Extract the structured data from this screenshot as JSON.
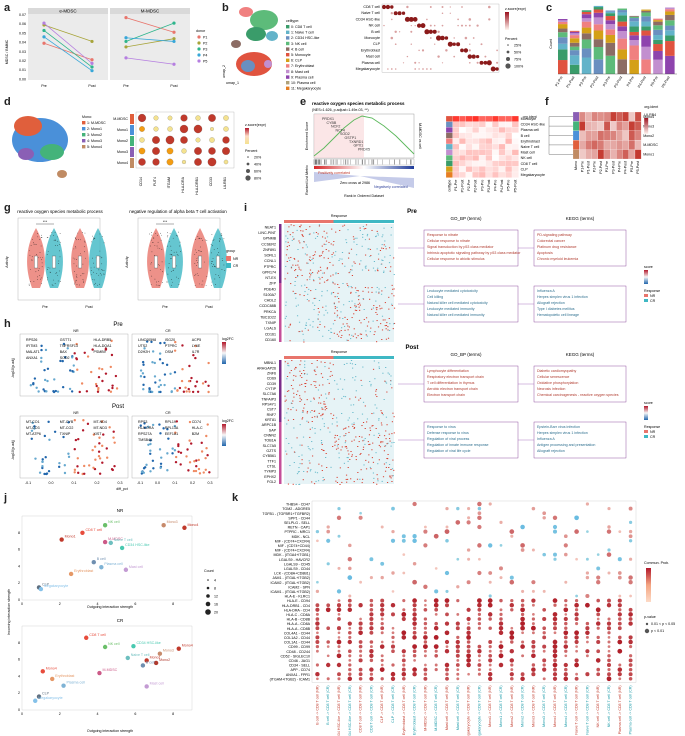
{
  "panels": {
    "a": {
      "label": "a",
      "titles": [
        "e-MDSC",
        "M-MDSC"
      ],
      "ylabel": "MDSC / BMMC",
      "yticks": [
        "0.07",
        "0.06",
        "0.05",
        "0.04",
        "0.03",
        "0.02",
        "0.01",
        "0.00"
      ],
      "xticks": [
        "Pre",
        "Post"
      ],
      "legend_title": "donor",
      "donors": [
        "P1",
        "P2",
        "P3",
        "P4",
        "P5"
      ],
      "colors": [
        "#e8756c",
        "#a7a43a",
        "#2eb58c",
        "#38a7d8",
        "#b57ee0"
      ]
    },
    "b": {
      "label": "b",
      "legend_title": "celltype:",
      "celltypes": [
        "0: CD8 T cell",
        "1: Naive T cell",
        "2: CD34 HSC-like",
        "3: NK cell",
        "4: B cell",
        "5: Monocyte",
        "6: CLP",
        "7: Erythroblast",
        "8: Mast cell",
        "9: Plasma cell",
        "10: Plasma cell",
        "11: Megakaryocyte"
      ],
      "dot_rows": [
        "CD8 T cell",
        "Naive T cell",
        "CD34 HSC-like",
        "NK cell",
        "B cell",
        "Monocyte",
        "CLP",
        "Erythroblast",
        "Mast cell",
        "Plasma cell",
        "Megakaryocyte"
      ],
      "axis1": "umap_1",
      "axis2": "umap_2",
      "cb_title": "z.score(expr)",
      "size_title": "Percent",
      "size_vals": [
        "25%",
        "50%",
        "75%",
        "100%"
      ]
    },
    "c": {
      "label": "c",
      "ylabel": "Count",
      "xticks": [
        "P1-Pre",
        "P1-Post",
        "P2-Pre",
        "P2-Post",
        "P3-Pre",
        "P3-Post",
        "P4-Pre",
        "P4-Post",
        "P5-Pre",
        "P5-Post"
      ]
    },
    "d": {
      "label": "d",
      "legend_title": "Mono:",
      "groups": [
        "1: M-MDSC",
        "2: Mono1",
        "3: Mono2",
        "4: Mono3",
        "5: Mono4"
      ],
      "dot_rows": [
        "M-MDSC",
        "Mono1",
        "Mono2",
        "Mono3",
        "Mono4"
      ],
      "genes": [
        "CD14",
        "FUT4",
        "ITGAM",
        "HLA-DRA",
        "HLA-DRB1",
        "CD33",
        "LILRB1"
      ],
      "cb_title": "z.score(expr)",
      "size_title": "Percent",
      "size_vals": [
        "20%",
        "40%",
        "60%",
        "80%"
      ]
    },
    "e": {
      "label": "e",
      "title": "reactive oxygen species metabolic process",
      "stats": "(NES=1.626, p.adjust=1.49e-03, **)",
      "ylabel": "Enrichment Score",
      "ylabel2": "Ranked List Metric",
      "xlabel": "Rank in Ordered Dataset",
      "pos": "Positively correlated",
      "neg": "Negatively correlated",
      "zero": "Zero cross at 2986",
      "side": "M-MDSC vs cell",
      "genes": [
        "PRDX1",
        "CYBB",
        "NCF2",
        "NCF4",
        "SOD2",
        "GSTP1",
        "TXNRD1",
        "GPX1",
        "PRDX5"
      ],
      "rows": [
        "Monocyte",
        "CD34 HSC-like",
        "Plasma cell",
        "B cell",
        "Erythroblast",
        "Naive T cell",
        "Mast cell",
        "NK cell",
        "CD8 T cell",
        "CLP",
        "Megakaryocyte"
      ],
      "cols": [
        "celltype",
        "P1-Pre",
        "P1-Post",
        "P2-Pre",
        "P2-Post",
        "P3-Pre",
        "P3-Post",
        "P4-Pre",
        "P4-Post",
        "P5-Pre",
        "P5-Post"
      ],
      "legend": "org.ident",
      "cb": "LILRB4"
    },
    "f": {
      "label": "f",
      "rows": [
        "Mono4",
        "Mono3",
        "Mono2",
        "M-MDSC",
        "Mono1"
      ],
      "cols": [
        "Mono",
        "P1-Pre",
        "P1-Post",
        "P2-Pre",
        "P2-Post",
        "P3-Pre",
        "P3-Post",
        "P4-Pre",
        "P4-Post",
        "P5-Pre",
        "P5-Post"
      ],
      "legend": "org.ident",
      "cb": "LILRB4"
    },
    "g": {
      "label": "g",
      "titles": [
        "reactive oxygen species metabolic process",
        "negative regulation of alpha beta T cell activation"
      ],
      "ylabel": "Activity",
      "xticks": [
        "Pre",
        "Post"
      ],
      "sig": "***",
      "legend_title": "group",
      "groups": [
        "NR",
        "CR"
      ]
    },
    "h": {
      "label": "h",
      "row_titles": [
        "Pre",
        "Post"
      ],
      "col_titles": [
        "NR",
        "CR"
      ],
      "ylabel": "-log10(p.adj)",
      "xlabel": "diff_pct",
      "xticks": [
        "-0.1",
        "0.0",
        "0.1",
        "0.2",
        "0.3"
      ],
      "cb_title": "log2FC",
      "pre_nr": [
        "RPS26",
        "GSTT1",
        "HLA-DRB5",
        "IFITM3",
        "TNFRSF13",
        "HLA-DQA1",
        "MALAT1",
        "BAX",
        "PSMB9",
        "ANXA1",
        "SOD2"
      ],
      "pre_cr": [
        "LINC00598",
        "ISG20",
        "ACP5",
        "UTS2",
        "PTPRC",
        "LY6E",
        "D2H2H",
        "OSM",
        "IL7R"
      ],
      "post_nr": [
        "MT-CO1",
        "MT-CYB",
        "MT-ND4",
        "MT-CO3",
        "MT-CO2",
        "MT-ND3",
        "MT-ATP6",
        "TXNIP",
        "XIST"
      ],
      "post_cr": [
        "RPS3",
        "RPL19",
        "CD74",
        "HLA-DRA",
        "RPL13A",
        "HLA-C",
        "RPS27A",
        "EEF1A1",
        "B2M",
        "TMSB4X"
      ]
    },
    "i": {
      "label": "i",
      "col_title": "Response",
      "states": [
        "Pre",
        "Post"
      ],
      "gobp": "GO_BP (terms)",
      "kegg": "KEGG (terms)",
      "pre_genes": [
        "NEAT1",
        "LINC-PINT",
        "GPNMB",
        "CCSER2",
        "ZNF891",
        "SORL1",
        "CCNL1",
        "PTPRC",
        "GPR174",
        "NT-EX",
        "ZFP",
        "PDE4D",
        "S100A7",
        "CHDL2",
        "CCDC88B",
        "PRKCA",
        "TBC1D22",
        "TXNIP",
        "LGALS",
        "CD161",
        "CD160"
      ],
      "post_genes": [
        "MBNL1",
        "ARHGAP26",
        "ZNF6",
        "CD69",
        "CD39",
        "CYTIP",
        "SLC7A6",
        "TNFAIP3",
        "RPS4Y1",
        "CST7",
        "RNF7",
        "KRT81",
        "ARPC1B",
        "SAP",
        "CNNN2",
        "TOB1A",
        "SLC7A5",
        "GZTS",
        "CYB561",
        "TTF1",
        "CTSL",
        "TYMP3",
        "EPHX2",
        "FGL2"
      ],
      "go_pre": [
        [
          "Response to nitrate",
          "Cellular response to nitrate",
          "Signal transduction by p53 class mediator",
          "Intrinsic apoptotic signaling pathway by p53 class mediator",
          "Cellular response to abiotic stimulus"
        ],
        [
          "Leukocyte mediated cytotoxicity",
          "Cell killing",
          "Natural killer cell mediated cytotoxicity",
          "Leukocyte mediated immunity",
          "Natural killer cell mediated immunity"
        ]
      ],
      "kegg_pre": [
        [
          "PD-signaling pathway",
          "Colorectal cancer",
          "Platinum drug resistance",
          "Apoptosis",
          "Chronic myeloid leukemia"
        ],
        [
          "Influenza A",
          "Herpes simplex virus 1 infection",
          "Allograft rejection",
          "Type I diabetes mellitus",
          "Hematopoietic cell lineage"
        ]
      ],
      "go_post": [
        [
          "Lymphocyte differentiation",
          "Respiratory electron transport chain",
          "T cell differentiation in thymus",
          "Aerobic electron transport chain",
          "Electron transport chain"
        ],
        [
          "Response to virus",
          "Defense response to virus",
          "Regulation of viral process",
          "Regulation of innate immune response",
          "Regulation of viral life cycle"
        ]
      ],
      "kegg_post": [
        [
          "Diabetic cardiomyopathy",
          "Cellular senescence",
          "Oxidative phosphorylation",
          "Necrosis infection",
          "Chemical carcinogenesis - reactive oxygen species"
        ],
        [
          "Epstein-Barr virus infection",
          "Herpes simplex virus 1 infection",
          "Influenza A",
          "Antigen processing and presentation",
          "Allograft rejection"
        ]
      ],
      "score": "score",
      "resp": "Response",
      "resp_vals": [
        "NR",
        "CR"
      ]
    },
    "j": {
      "label": "j",
      "titles": [
        "NR",
        "CR"
      ],
      "ylabel": "Incoming interaction strength",
      "xlabel": "Outgoing interaction strength",
      "count_title": "Count",
      "counts": [
        "4",
        "8",
        "12",
        "16",
        "20"
      ],
      "nr": [
        {
          "n": "Mono4",
          "x": 8.6,
          "y": 8.6,
          "c": "#c0392b"
        },
        {
          "n": "Mono3",
          "x": 7.5,
          "y": 8.9,
          "c": "#c78a6b"
        },
        {
          "n": "NK cell",
          "x": 4.4,
          "y": 8.9,
          "c": "#6abf69"
        },
        {
          "n": "CD8 T cell",
          "x": 3.2,
          "y": 8.0,
          "c": "#e74c3c"
        },
        {
          "n": "M-MDSC",
          "x": 4.4,
          "y": 6.9,
          "c": "#cc5a88"
        },
        {
          "n": "Mono1",
          "x": 2.1,
          "y": 7.2,
          "c": "#c0392b"
        },
        {
          "n": "CD34 HSC-like",
          "x": 5.3,
          "y": 6.2,
          "c": "#48c9b0"
        },
        {
          "n": "Naive T cell",
          "x": 4.7,
          "y": 6.8,
          "c": "#6dbfbf"
        },
        {
          "n": "B cell",
          "x": 3.8,
          "y": 4.5,
          "c": "#6f8fb0"
        },
        {
          "n": "Plasma cell",
          "x": 4.2,
          "y": 3.9,
          "c": "#7fb3d5"
        },
        {
          "n": "Mast cell",
          "x": 5.5,
          "y": 3.6,
          "c": "#c39bd3"
        },
        {
          "n": "Erythroblast",
          "x": 2.6,
          "y": 3.1,
          "c": "#e59866"
        },
        {
          "n": "CLP",
          "x": 0.9,
          "y": 1.5,
          "c": "#5d6d7e"
        },
        {
          "n": "Megakaryocyte",
          "x": 1.0,
          "y": 1.3,
          "c": "#85c1e9"
        }
      ],
      "cr": [
        {
          "n": "CD8 T cell",
          "x": 3.4,
          "y": 8.6,
          "c": "#e74c3c"
        },
        {
          "n": "CD34 HSC-like",
          "x": 5.9,
          "y": 7.6,
          "c": "#48c9b0"
        },
        {
          "n": "NK cell",
          "x": 4.4,
          "y": 7.5,
          "c": "#6abf69"
        },
        {
          "n": "Mono4",
          "x": 8.3,
          "y": 7.3,
          "c": "#c0392b"
        },
        {
          "n": "Mono3",
          "x": 7.3,
          "y": 6.7,
          "c": "#c78a6b"
        },
        {
          "n": "Naive T cell",
          "x": 5.6,
          "y": 6.2,
          "c": "#6dbfbf"
        },
        {
          "n": "Mono1",
          "x": 6.6,
          "y": 5.9,
          "c": "#c0392b"
        },
        {
          "n": "Mono2",
          "x": 7.1,
          "y": 5.6,
          "c": "#b03a2e"
        },
        {
          "n": "B cell",
          "x": 6.4,
          "y": 5.3,
          "c": "#6f8fb0"
        },
        {
          "n": "Mono4",
          "x": 1.1,
          "y": 4.6,
          "c": "#e74c3c"
        },
        {
          "n": "M-MDSC",
          "x": 4.1,
          "y": 4.4,
          "c": "#cc5a88"
        },
        {
          "n": "Erythroblast",
          "x": 1.6,
          "y": 3.7,
          "c": "#e59866"
        },
        {
          "n": "Plasma cell",
          "x": 2.2,
          "y": 2.9,
          "c": "#7fb3d5"
        },
        {
          "n": "Mast cell",
          "x": 6.6,
          "y": 2.8,
          "c": "#c39bd3"
        },
        {
          "n": "CLP",
          "x": 0.9,
          "y": 1.6,
          "c": "#5d6d7e"
        },
        {
          "n": "Megakaryocyte",
          "x": 0.7,
          "y": 1.1,
          "c": "#85c1e9"
        }
      ]
    },
    "k": {
      "label": "k",
      "cb_title": "Commun. Prob.",
      "p_title": "p-value",
      "p_vals": [
        "0.01 < p < 0.05",
        "p < 0.01"
      ],
      "rows": [
        "THBS4 - CD47",
        "TGM2 - ADGRE5",
        "TGFB1 - (TGFBR1+TGFBR2)",
        "SPP1 - CD44",
        "SELPLG - SELL",
        "RETN - CAP1",
        "PTPRC - MRC1",
        "MDK - NCL",
        "MIF - (CD74+CXCR4)",
        "MIF - (CD74+CD44)",
        "MIF - (CD74+CXCR4)",
        "MDK - (ITGA4+ITGB1)",
        "LGALS9 - HAVCR2",
        "LGALS9 - CD45",
        "LGALS9 - CD44",
        "LCK - (CD8A+CD8B1)",
        "JAM1 - (ITGAL+ITGB2)",
        "ICAM2 - (ITGAL+ITGB2)",
        "ICAM2 - SPN",
        "ICAM1 - (ITGAL+ITGB2)",
        "HLA-E - KLRC1",
        "HLA-E - CD94",
        "HLA-DRB1 - CD4",
        "HLA-DRA - CD4",
        "HLA-C - CD8A",
        "HLA-B - CD8B",
        "HLA-A - CD8A",
        "HLA-A - CD8B",
        "COL4A1 - CD44",
        "COL1A2 - CD44",
        "COL1A1 - CD44",
        "CD99 - CD99",
        "CD48 - CD244",
        "CD52 - SIGLEC10",
        "CD46 - JAG1",
        "CD34 - SELL",
        "APP - CD74",
        "ANXA1 - FPR1",
        "(ITGAM+ITGB2) - ICAM1"
      ],
      "cols": [
        "B cell -> CD8 T cell (NR)",
        "B cell -> CD8 T cell (CR)",
        "CD34 HSC-like -> CD8 T cell (NR)",
        "CD34 HSC-like -> CD8 T cell (CR)",
        "CD8 T cell -> CD8 T cell (NR)",
        "CD8 T cell -> CD8 T cell (CR)",
        "CLP -> CD8 T cell (NR)",
        "CLP -> CD8 T cell (CR)",
        "Erythroblast -> CD8 T cell (NR)",
        "Erythroblast -> CD8 T cell (CR)",
        "M-MDSC -> CD8 T cell (NR)",
        "M-MDSC -> CD8 T cell (CR)",
        "Mast cell -> CD8 T cell (NR)",
        "Mast cell -> CD8 T cell (CR)",
        "Megakaryocyte -> CD8 T cell (NR)",
        "Megakaryocyte -> CD8 T cell (CR)",
        "Mono1 -> CD8 T cell (NR)",
        "Mono1 -> CD8 T cell (CR)",
        "Mono2 -> CD8 T cell (NR)",
        "Mono2 -> CD8 T cell (CR)",
        "Mono3 -> CD8 T cell (NR)",
        "Mono3 -> CD8 T cell (CR)",
        "Mono4 -> CD8 T cell (NR)",
        "Mono4 -> CD8 T cell (CR)",
        "Naive T cell -> CD8 T cell (NR)",
        "Naive T cell -> CD8 T cell (CR)",
        "NK cell -> CD8 T cell (NR)",
        "NK cell -> CD8 T cell (CR)",
        "Plasma cell -> CD8 T cell (NR)",
        "Plasma cell -> CD8 T cell (CR)"
      ]
    }
  }
}
